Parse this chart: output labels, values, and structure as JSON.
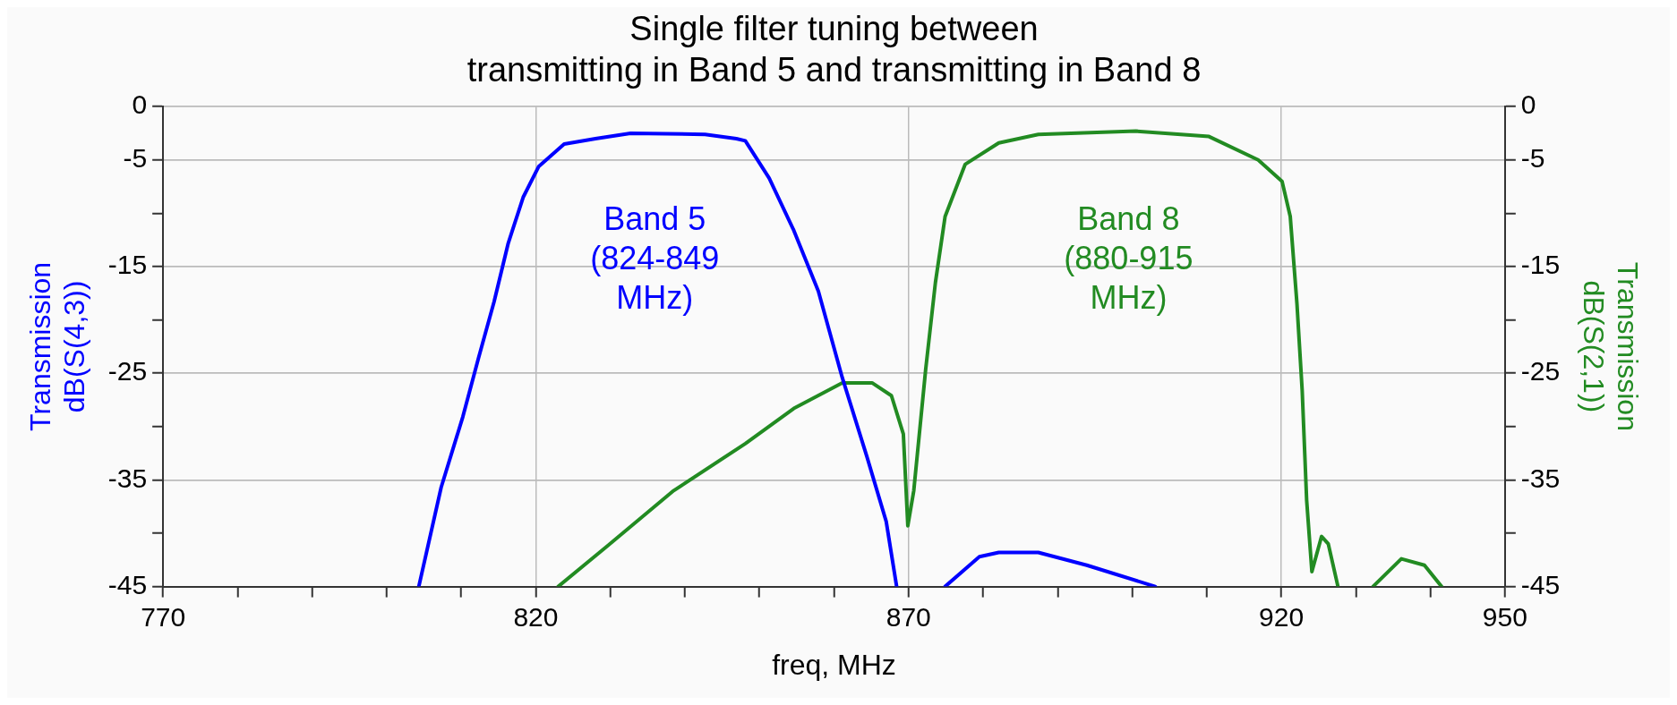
{
  "chart_data": {
    "type": "line",
    "title": "Single filter tuning between\ntransmitting in Band 5 and transmitting in Band 8",
    "xlabel": "freq, MHz",
    "ylabel": "Transmission\ndB(S(4,3))",
    "y2label": "Transmission\ndB(S(2,1))",
    "series": [
      {
        "color": "#0000ff",
        "axis": "y",
        "x": [
          804.3,
          807.3,
          810.2,
          812.3,
          814.4,
          816.3,
          818.3,
          820.4,
          823.8,
          828,
          832.7,
          842.7,
          846.9,
          848.1,
          851.3,
          854.6,
          857.9,
          861.1,
          864.4,
          867.0,
          868.4,
          871.6,
          874.9,
          879.5,
          882.1,
          887.4,
          893.9,
          903.1
        ],
        "values": [
          -45,
          -35.7,
          -29.1,
          -23.6,
          -18.3,
          -12.8,
          -8.5,
          -5.6,
          -3.5,
          -3.0,
          -2.5,
          -2.6,
          -3.0,
          -3.2,
          -6.7,
          -11.6,
          -17.3,
          -25.4,
          -32.8,
          -38.9,
          -45,
          null,
          -45,
          -42.2,
          -41.8,
          -41.8,
          -43.0,
          -45
        ]
      },
      {
        "color": "#228b22",
        "axis": "y2",
        "x": [
          823.0,
          829.6,
          838.5,
          848.1,
          854.6,
          861.1,
          865.1,
          867.7,
          869.3,
          869.9,
          870.7,
          872.3,
          873.6,
          874.9,
          877.6,
          882.1,
          887.4,
          900.5,
          910.3,
          916.9,
          920.1,
          921.2,
          922.1,
          922.8,
          923.4,
          924.1,
          925.4,
          926.3,
          927.6,
          930,
          932.3,
          936.1,
          939.2,
          941.5
        ],
        "values": [
          -45,
          -41.2,
          -36.0,
          -31.6,
          -28.3,
          -25.9,
          -25.9,
          -27.1,
          -30.7,
          -39.3,
          -36.0,
          -24.6,
          -16.5,
          -10.3,
          -5.4,
          -3.4,
          -2.6,
          -2.3,
          -2.8,
          -5.0,
          -7.0,
          -10.3,
          -18.5,
          -26.6,
          -36.9,
          -43.6,
          -40.3,
          -41,
          -45,
          null,
          -45,
          -42.4,
          -43.0,
          -45
        ]
      }
    ],
    "annotations": [
      "Band 5\n(824-849\nMHz)",
      "Band 8\n(880-915\nMHz)"
    ],
    "xlim": [
      770,
      950
    ],
    "xticks": [
      770,
      {
        "value": 780,
        "label": null
      },
      {
        "value": 790,
        "label": null
      },
      {
        "value": 800,
        "label": null
      },
      {
        "value": 810,
        "label": null
      },
      820,
      {
        "value": 830,
        "label": null
      },
      {
        "value": 840,
        "label": null
      },
      {
        "value": 850,
        "label": null
      },
      {
        "value": 860,
        "label": null
      },
      870,
      {
        "value": 880,
        "label": null
      },
      {
        "value": 890,
        "label": null
      },
      {
        "value": 900,
        "label": null
      },
      {
        "value": 910,
        "label": null
      },
      920,
      {
        "value": 930,
        "label": null
      },
      {
        "value": 940,
        "label": null
      },
      950
    ],
    "ylim": [
      -45,
      0
    ],
    "yticks": [
      0,
      -5,
      {
        "value": -10,
        "label": null
      },
      -15,
      {
        "value": -20,
        "label": null
      },
      -25,
      {
        "value": -30,
        "label": null
      },
      -35,
      {
        "value": -40,
        "label": null
      },
      -45
    ],
    "y2lim": [
      -45,
      0
    ],
    "y2ticks": [
      0,
      -5,
      {
        "value": -10,
        "label": null
      },
      -15,
      {
        "value": -20,
        "label": null
      },
      -25,
      {
        "value": -30,
        "label": null
      },
      -35,
      {
        "value": -40,
        "label": null
      },
      -45
    ],
    "grid": true,
    "legend": false,
    "marker": "none",
    "line_style": "solid"
  }
}
